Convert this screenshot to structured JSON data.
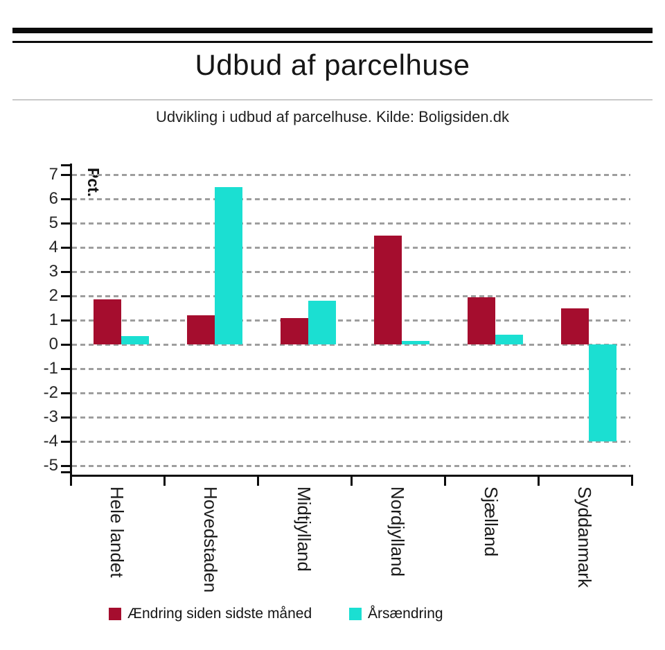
{
  "chart_data": {
    "type": "bar",
    "title": "Udbud af parcelhuse",
    "subtitle": "Udvikling i udbud af parcelhuse. Kilde: Boligsiden.dk",
    "ylabel": "Pct.",
    "xlabel": "",
    "ylim": [
      -5,
      7
    ],
    "ytick_step": 1,
    "grid": "horizontal-dashed",
    "legend_position": "bottom",
    "x_label_rotation": 90,
    "categories": [
      "Hele landet",
      "Hovedstaden",
      "Midtjylland",
      "Nordjylland",
      "Sjælland",
      "Syddanmark"
    ],
    "series": [
      {
        "name": "Ændring siden sidste måned",
        "color": "#A50D2E",
        "values": [
          1.85,
          1.2,
          1.1,
          4.5,
          1.95,
          1.5
        ]
      },
      {
        "name": "Årsændring",
        "color": "#1BDFD2",
        "values": [
          0.35,
          6.5,
          1.8,
          0.15,
          0.4,
          -4.0
        ]
      }
    ]
  },
  "colors": {
    "axis": "#0B0B0B",
    "grid": "#9E9E9E",
    "divider": "#C9C9C9"
  }
}
